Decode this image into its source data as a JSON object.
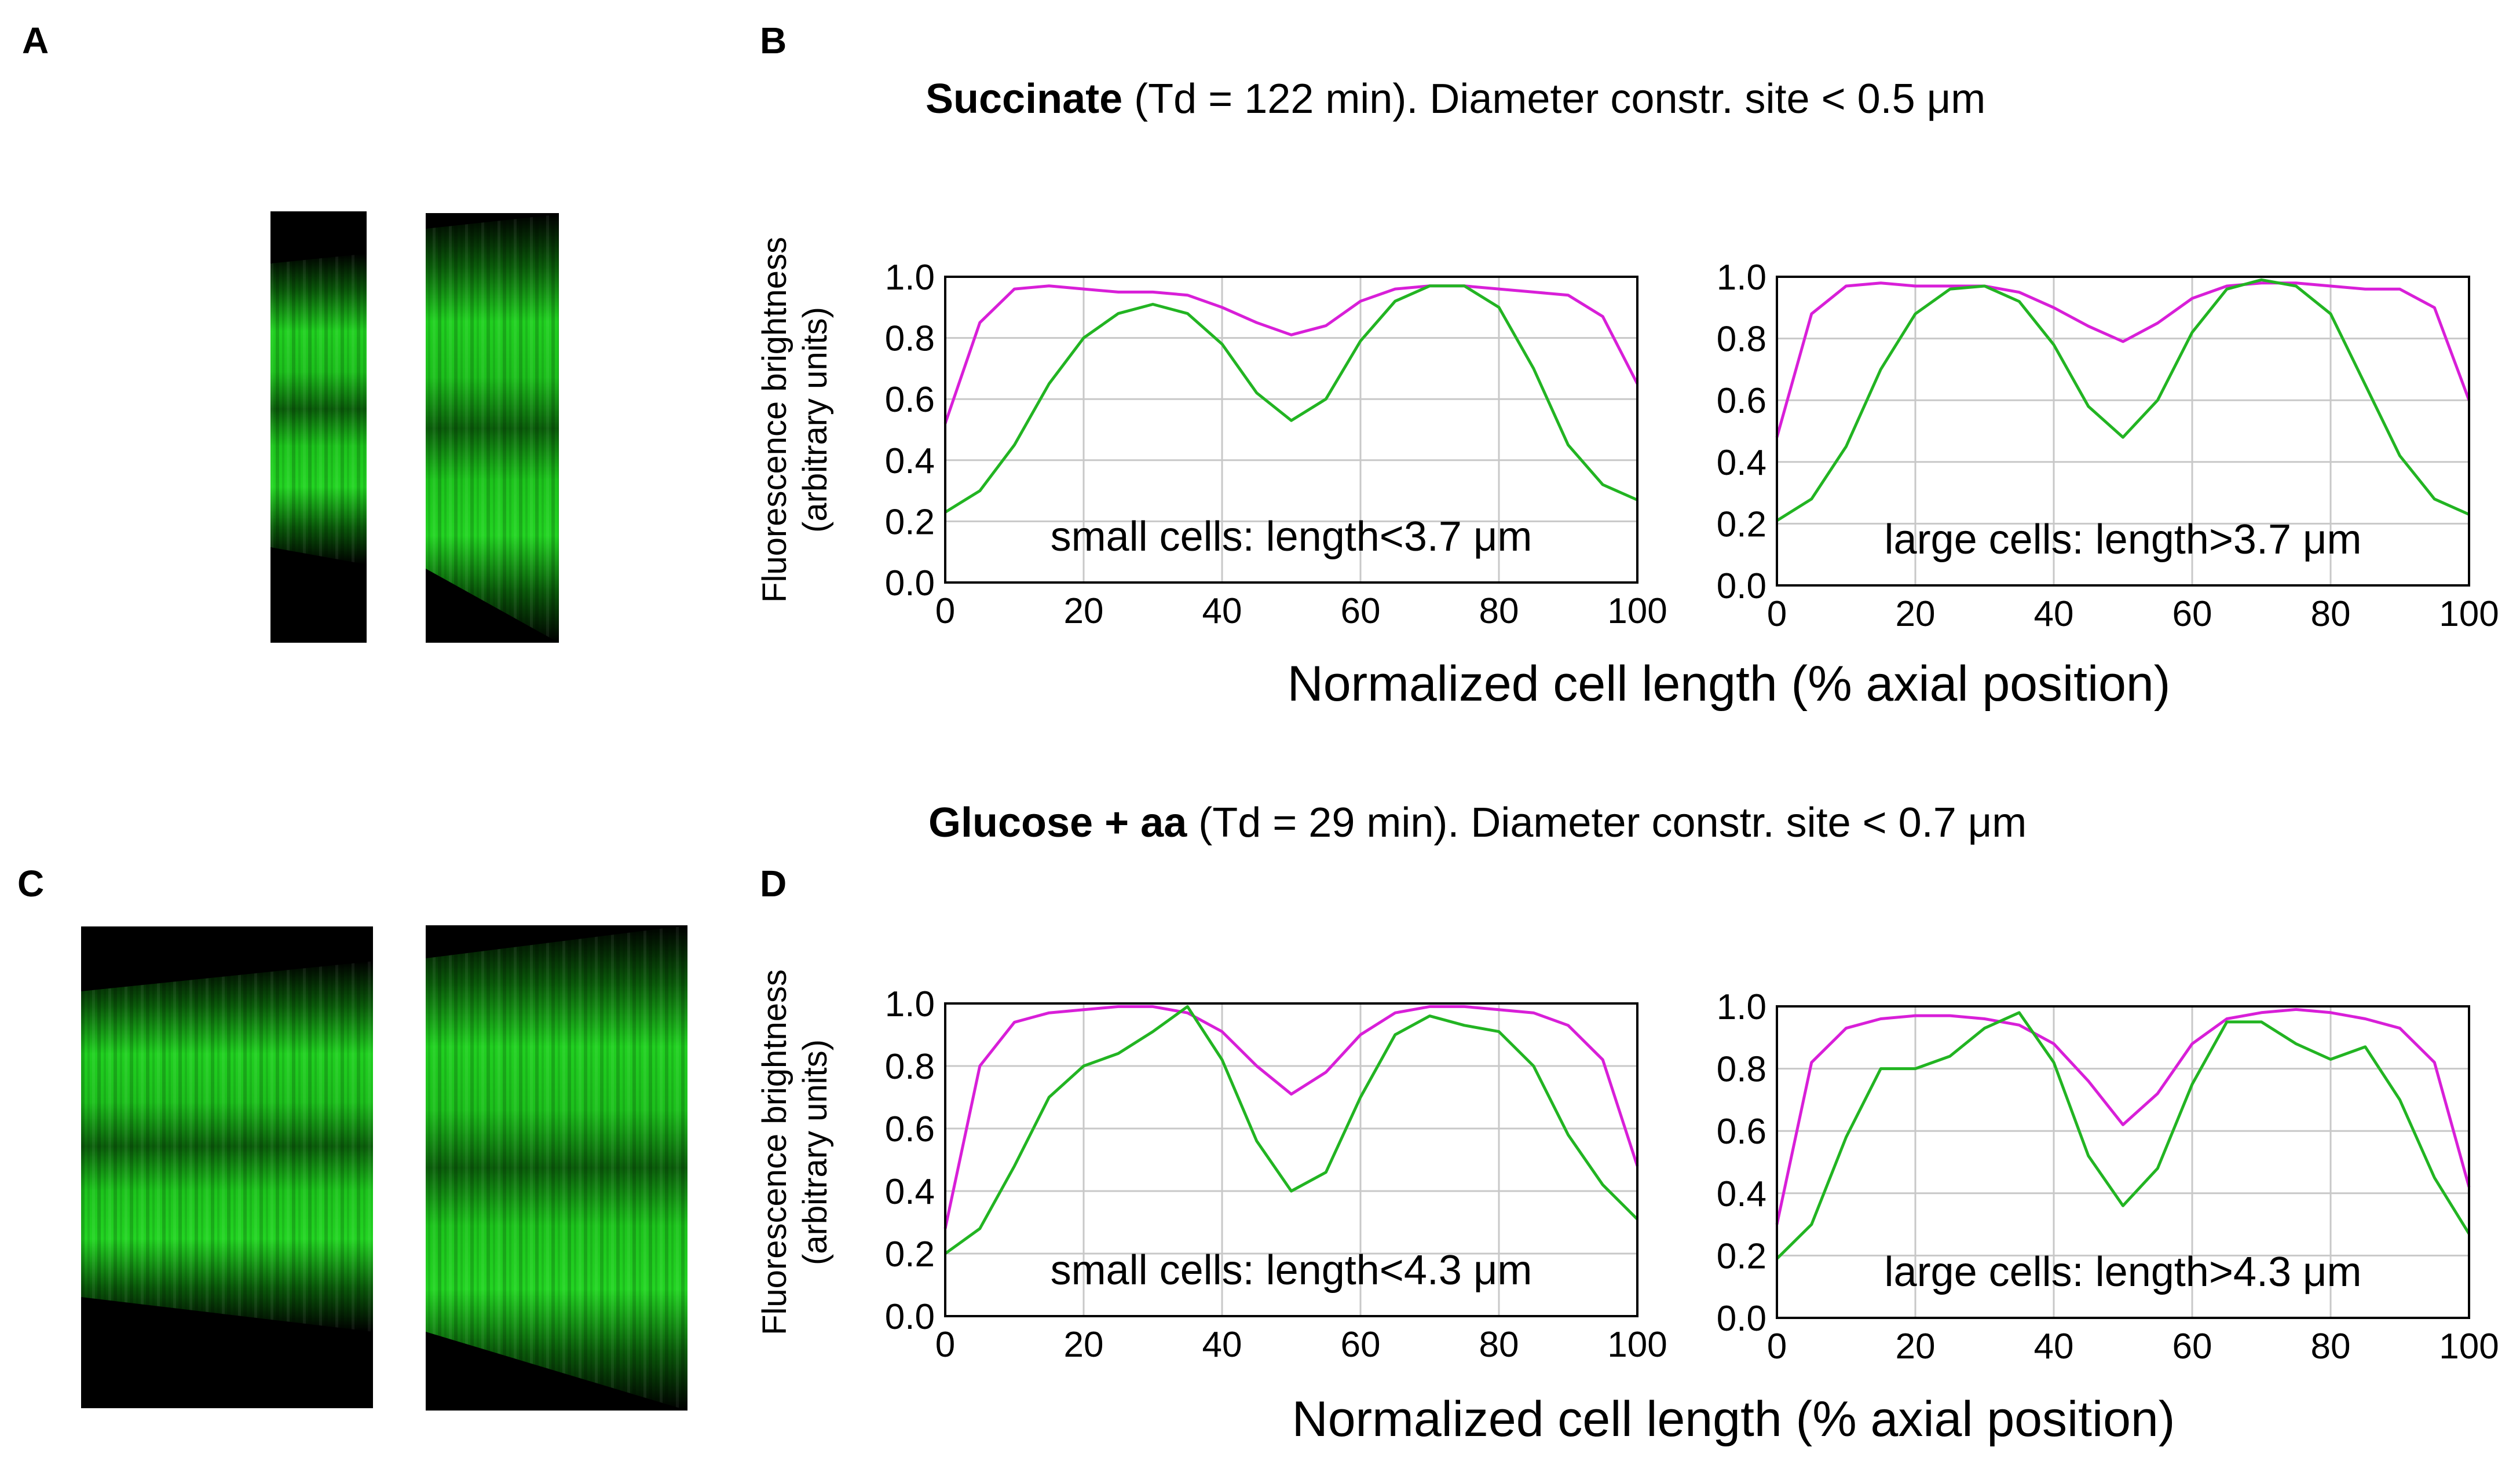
{
  "panels": {
    "A": "A",
    "B": "B",
    "C": "C",
    "D": "D"
  },
  "titles": {
    "top": {
      "bold": "Succinate",
      "rest": " (Td = 122 min). Diameter constr. site < 0.5 μm"
    },
    "bottom": {
      "bold": "Glucose + aa",
      "rest": " (Td = 29 min). Diameter constr. site < 0.7 μm"
    }
  },
  "ylabel": {
    "line1": "Fluorescence brightness",
    "line2": "(arbitrary units)"
  },
  "xlabel": "Normalized cell length (% axial position)",
  "colors": {
    "magenta": "#d81fd8",
    "green": "#22b422",
    "kymo_green": "#1ed21e",
    "background": "#000000"
  },
  "kymographs": {
    "A_left": {
      "channel": "green",
      "band_pattern": "two bright lobes, dark constriction band in middle"
    },
    "A_right": {
      "channel": "green",
      "band_pattern": "two bright lobes, dark constriction band in middle"
    },
    "C_left": {
      "channel": "green",
      "band_pattern": "two bright lobes, dark constriction band in middle"
    },
    "C_right": {
      "channel": "green",
      "band_pattern": "two bright lobes, dark constriction band in middle"
    }
  },
  "chart_data": [
    {
      "id": "succ_small",
      "type": "line",
      "annotation": "small cells: length<3.7 μm",
      "xlim": [
        0,
        100
      ],
      "ylim": [
        0.0,
        1.0
      ],
      "xticks": [
        "0",
        "20",
        "40",
        "60",
        "80",
        "100"
      ],
      "yticks": [
        "0.0",
        "0.2",
        "0.4",
        "0.6",
        "0.8",
        "1.0"
      ],
      "x": [
        0,
        5,
        10,
        15,
        20,
        25,
        30,
        35,
        40,
        45,
        50,
        55,
        60,
        65,
        70,
        75,
        80,
        85,
        90,
        95,
        100
      ],
      "series": [
        {
          "name": "magenta",
          "values": [
            0.52,
            0.85,
            0.96,
            0.97,
            0.96,
            0.95,
            0.95,
            0.94,
            0.9,
            0.85,
            0.81,
            0.84,
            0.92,
            0.96,
            0.97,
            0.97,
            0.96,
            0.95,
            0.94,
            0.87,
            0.65
          ]
        },
        {
          "name": "green",
          "values": [
            0.23,
            0.3,
            0.45,
            0.65,
            0.8,
            0.88,
            0.91,
            0.88,
            0.78,
            0.62,
            0.53,
            0.6,
            0.79,
            0.92,
            0.97,
            0.97,
            0.9,
            0.7,
            0.45,
            0.32,
            0.27
          ]
        }
      ]
    },
    {
      "id": "succ_large",
      "type": "line",
      "annotation": "large cells: length>3.7 μm",
      "xlim": [
        0,
        100
      ],
      "ylim": [
        0.0,
        1.0
      ],
      "xticks": [
        "0",
        "20",
        "40",
        "60",
        "80",
        "100"
      ],
      "yticks": [
        "0.0",
        "0.2",
        "0.4",
        "0.6",
        "0.8",
        "1.0"
      ],
      "x": [
        0,
        5,
        10,
        15,
        20,
        25,
        30,
        35,
        40,
        45,
        50,
        55,
        60,
        65,
        70,
        75,
        80,
        85,
        90,
        95,
        100
      ],
      "series": [
        {
          "name": "magenta",
          "values": [
            0.48,
            0.88,
            0.97,
            0.98,
            0.97,
            0.97,
            0.97,
            0.95,
            0.9,
            0.84,
            0.79,
            0.85,
            0.93,
            0.97,
            0.98,
            0.98,
            0.97,
            0.96,
            0.96,
            0.9,
            0.6
          ]
        },
        {
          "name": "green",
          "values": [
            0.21,
            0.28,
            0.45,
            0.7,
            0.88,
            0.96,
            0.97,
            0.92,
            0.78,
            0.58,
            0.48,
            0.6,
            0.82,
            0.96,
            0.99,
            0.97,
            0.88,
            0.65,
            0.42,
            0.28,
            0.23
          ]
        }
      ]
    },
    {
      "id": "gluc_small",
      "type": "line",
      "annotation": "small cells: length<4.3 μm",
      "xlim": [
        0,
        100
      ],
      "ylim": [
        0.0,
        1.0
      ],
      "xticks": [
        "0",
        "20",
        "40",
        "60",
        "80",
        "100"
      ],
      "yticks": [
        "0.0",
        "0.2",
        "0.4",
        "0.6",
        "0.8",
        "1.0"
      ],
      "x": [
        0,
        5,
        10,
        15,
        20,
        25,
        30,
        35,
        40,
        45,
        50,
        55,
        60,
        65,
        70,
        75,
        80,
        85,
        90,
        95,
        100
      ],
      "series": [
        {
          "name": "magenta",
          "values": [
            0.28,
            0.8,
            0.94,
            0.97,
            0.98,
            0.99,
            0.99,
            0.97,
            0.91,
            0.8,
            0.71,
            0.78,
            0.9,
            0.97,
            0.99,
            0.99,
            0.98,
            0.97,
            0.93,
            0.82,
            0.48
          ]
        },
        {
          "name": "green",
          "values": [
            0.2,
            0.28,
            0.48,
            0.7,
            0.8,
            0.84,
            0.91,
            0.99,
            0.82,
            0.56,
            0.4,
            0.46,
            0.7,
            0.9,
            0.96,
            0.93,
            0.91,
            0.8,
            0.58,
            0.42,
            0.31
          ]
        }
      ]
    },
    {
      "id": "gluc_large",
      "type": "line",
      "annotation": "large cells: length>4.3 μm",
      "xlim": [
        0,
        100
      ],
      "ylim": [
        0.0,
        1.0
      ],
      "xticks": [
        "0",
        "20",
        "40",
        "60",
        "80",
        "100"
      ],
      "yticks": [
        "0.0",
        "0.2",
        "0.4",
        "0.6",
        "0.8",
        "1.0"
      ],
      "x": [
        0,
        5,
        10,
        15,
        20,
        25,
        30,
        35,
        40,
        45,
        50,
        55,
        60,
        65,
        70,
        75,
        80,
        85,
        90,
        95,
        100
      ],
      "series": [
        {
          "name": "magenta",
          "values": [
            0.3,
            0.82,
            0.93,
            0.96,
            0.97,
            0.97,
            0.96,
            0.94,
            0.88,
            0.76,
            0.62,
            0.72,
            0.88,
            0.96,
            0.98,
            0.99,
            0.98,
            0.96,
            0.93,
            0.82,
            0.42
          ]
        },
        {
          "name": "green",
          "values": [
            0.19,
            0.3,
            0.58,
            0.8,
            0.8,
            0.84,
            0.93,
            0.98,
            0.82,
            0.52,
            0.36,
            0.48,
            0.75,
            0.95,
            0.95,
            0.88,
            0.83,
            0.87,
            0.7,
            0.45,
            0.27
          ]
        }
      ]
    }
  ]
}
